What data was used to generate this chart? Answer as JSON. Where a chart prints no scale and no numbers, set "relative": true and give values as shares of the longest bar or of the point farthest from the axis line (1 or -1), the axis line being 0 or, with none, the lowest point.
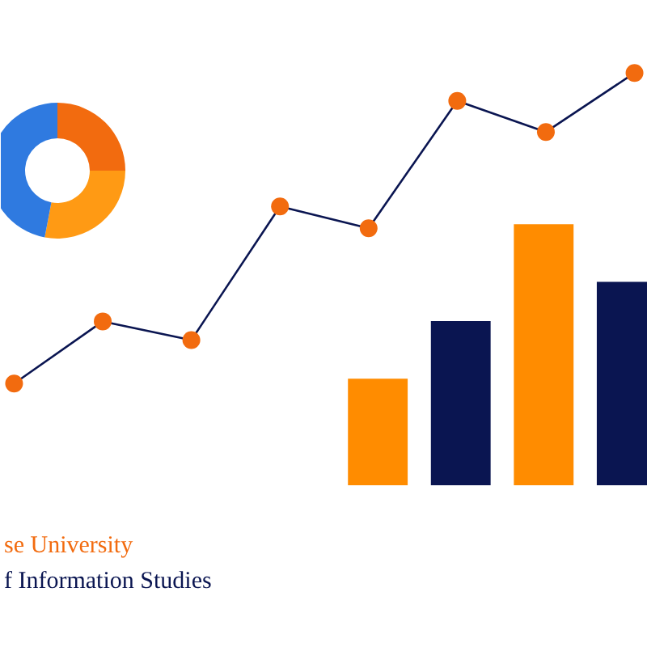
{
  "chart_data": [
    {
      "type": "donut",
      "categories": [
        null,
        null,
        null
      ],
      "values": [
        25,
        28,
        47
      ],
      "colors": [
        "#f26b0f",
        "#ff9a14",
        "#2f7ae0"
      ]
    },
    {
      "type": "line",
      "relative": true,
      "categories": [
        null,
        null,
        null,
        null,
        null,
        null,
        null,
        null
      ],
      "series": [
        {
          "color": "#0a1551",
          "colors": [
            "#f26b0f",
            "#f26b0f",
            "#f26b0f",
            "#f26b0f",
            "#f26b0f",
            "#f26b0f",
            "#f26b0f",
            "#f26b0f"
          ],
          "values": [
            0,
            0.2,
            0.14,
            0.57,
            0.5,
            0.91,
            0.81,
            1
          ]
        }
      ],
      "marker": "circle"
    },
    {
      "type": "bar",
      "relative": true,
      "categories": [
        null,
        null,
        null,
        null
      ],
      "values": [
        0.41,
        0.63,
        1,
        0.78
      ],
      "colors": [
        "#ff8c00",
        "#0a1551",
        "#ff8c00",
        "#0a1551"
      ],
      "annotations": [
        "se University",
        "f Information Studies"
      ]
    }
  ]
}
